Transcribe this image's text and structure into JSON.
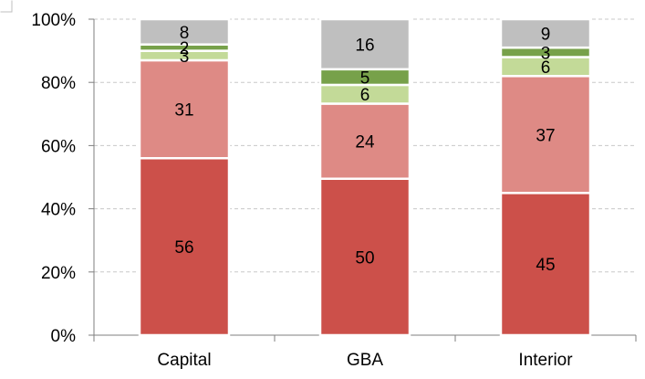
{
  "chart_data": {
    "type": "bar",
    "stacked": true,
    "percent_stacked": true,
    "categories": [
      "Capital",
      "GBA",
      "Interior"
    ],
    "series": [
      {
        "values": [
          56,
          50,
          45
        ],
        "color": "#cc504a"
      },
      {
        "values": [
          31,
          24,
          37
        ],
        "color": "#de8a85"
      },
      {
        "values": [
          3,
          6,
          6
        ],
        "color": "#c3da98"
      },
      {
        "values": [
          2,
          5,
          3
        ],
        "color": "#77a14a"
      },
      {
        "values": [
          8,
          16,
          9
        ],
        "color": "#bfbfbf"
      }
    ],
    "data_labels": [
      [
        "56",
        "50",
        "45"
      ],
      [
        "31",
        "24",
        "37"
      ],
      [
        "3",
        "6",
        "6"
      ],
      [
        "2",
        "5",
        "3"
      ],
      [
        "8",
        "16",
        "9"
      ]
    ],
    "y_ticks": [
      "0%",
      "20%",
      "40%",
      "60%",
      "80%",
      "100%"
    ],
    "ylim": [
      0,
      100
    ],
    "grid": "horizontal-dashed",
    "legend": "none"
  }
}
